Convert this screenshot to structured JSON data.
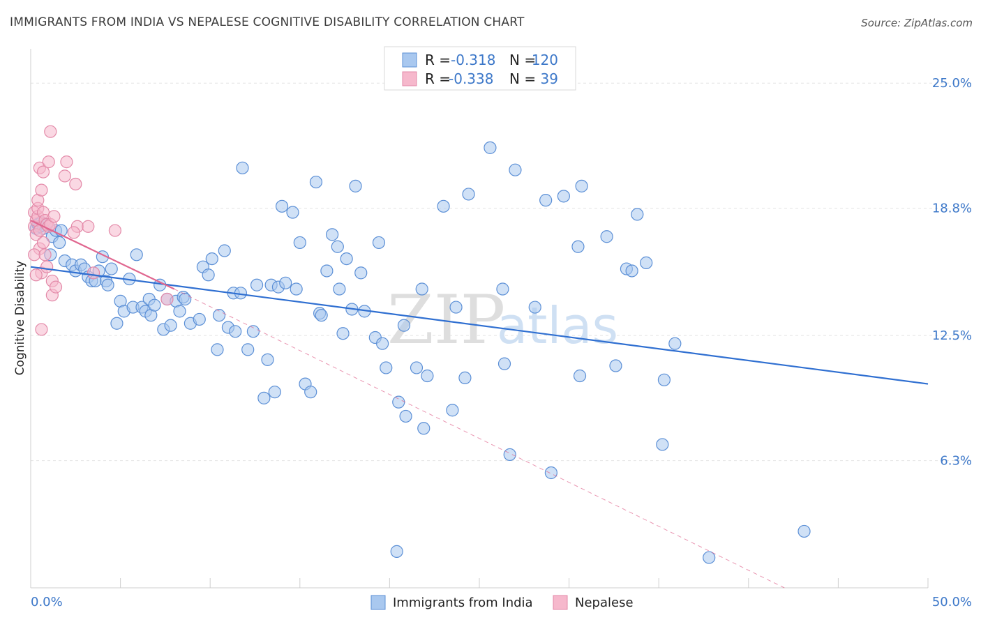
{
  "title": "IMMIGRANTS FROM INDIA VS NEPALESE COGNITIVE DISABILITY CORRELATION CHART",
  "source": "Source: ZipAtlas.com",
  "watermark": {
    "zip": "ZIP",
    "atlas": "atlas"
  },
  "colors": {
    "blue_fill": "#a9c8ef",
    "blue_stroke": "#5b8fd6",
    "blue_line": "#2f6fd1",
    "pink_fill": "#f6b8cc",
    "pink_stroke": "#e389a8",
    "pink_line": "#e0668f",
    "grid": "#e3e3e3",
    "tick_text": "#3d78c9"
  },
  "legend": {
    "rows": [
      {
        "r_label": "R =",
        "r_value": "-0.318",
        "n_label": "N =",
        "n_value": "120"
      },
      {
        "r_label": "R =",
        "r_value": "-0.338",
        "n_label": "N =",
        "n_value": "39"
      }
    ]
  },
  "bottom_legend": [
    "Immigrants from India",
    "Nepalese"
  ],
  "chart_data": {
    "type": "scatter",
    "title": "IMMIGRANTS FROM INDIA VS NEPALESE COGNITIVE DISABILITY CORRELATION CHART",
    "xlabel": "",
    "ylabel": "Cognitive Disability",
    "xlim": [
      0,
      50
    ],
    "ylim": [
      0,
      26.7
    ],
    "x_tick_labels": [
      "0.0%",
      "50.0%"
    ],
    "y_ticks": [
      6.3,
      12.5,
      18.8,
      25.0
    ],
    "y_tick_labels": [
      "6.3%",
      "12.5%",
      "18.8%",
      "25.0%"
    ],
    "grid": true,
    "legend_placement": "top-center",
    "series": [
      {
        "name": "Immigrants from India",
        "color": "#a9c8ef",
        "trend": {
          "x": [
            0,
            50
          ],
          "y": [
            15.9,
            10.1
          ],
          "style": "solid"
        },
        "points": [
          [
            0.3,
            17.8
          ],
          [
            0.4,
            18.0
          ],
          [
            0.6,
            18.1
          ],
          [
            0.7,
            17.8
          ],
          [
            0.5,
            17.9
          ],
          [
            0.9,
            18.0
          ],
          [
            1.2,
            17.4
          ],
          [
            1.4,
            17.7
          ],
          [
            1.7,
            17.7
          ],
          [
            1.1,
            16.5
          ],
          [
            1.6,
            17.1
          ],
          [
            1.9,
            16.2
          ],
          [
            2.3,
            16.0
          ],
          [
            2.5,
            15.7
          ],
          [
            2.8,
            16.0
          ],
          [
            3.0,
            15.8
          ],
          [
            3.2,
            15.4
          ],
          [
            3.4,
            15.2
          ],
          [
            3.6,
            15.2
          ],
          [
            3.8,
            15.7
          ],
          [
            4.0,
            16.4
          ],
          [
            4.2,
            15.2
          ],
          [
            4.3,
            15.0
          ],
          [
            4.5,
            15.8
          ],
          [
            4.8,
            13.1
          ],
          [
            5.0,
            14.2
          ],
          [
            5.2,
            13.7
          ],
          [
            5.5,
            15.3
          ],
          [
            5.7,
            13.9
          ],
          [
            5.9,
            16.5
          ],
          [
            6.2,
            13.9
          ],
          [
            6.4,
            13.7
          ],
          [
            6.6,
            14.3
          ],
          [
            6.7,
            13.5
          ],
          [
            6.9,
            14.0
          ],
          [
            7.2,
            15.0
          ],
          [
            7.4,
            12.8
          ],
          [
            7.6,
            14.3
          ],
          [
            7.8,
            13.0
          ],
          [
            8.1,
            14.2
          ],
          [
            8.3,
            13.7
          ],
          [
            8.5,
            14.4
          ],
          [
            8.6,
            14.3
          ],
          [
            8.9,
            13.1
          ],
          [
            9.4,
            13.3
          ],
          [
            9.6,
            15.9
          ],
          [
            9.9,
            15.5
          ],
          [
            10.1,
            16.3
          ],
          [
            10.4,
            11.8
          ],
          [
            10.5,
            13.5
          ],
          [
            10.8,
            16.7
          ],
          [
            11.0,
            12.9
          ],
          [
            11.3,
            14.6
          ],
          [
            11.4,
            12.7
          ],
          [
            11.7,
            14.6
          ],
          [
            11.8,
            20.8
          ],
          [
            12.1,
            11.8
          ],
          [
            12.4,
            12.7
          ],
          [
            12.6,
            15.0
          ],
          [
            13.0,
            9.4
          ],
          [
            13.2,
            11.3
          ],
          [
            13.4,
            15.0
          ],
          [
            13.6,
            9.7
          ],
          [
            13.8,
            14.9
          ],
          [
            14.0,
            18.9
          ],
          [
            14.2,
            15.1
          ],
          [
            14.6,
            18.6
          ],
          [
            14.8,
            14.8
          ],
          [
            15.0,
            17.1
          ],
          [
            15.3,
            10.1
          ],
          [
            15.6,
            9.7
          ],
          [
            15.9,
            20.1
          ],
          [
            16.1,
            13.6
          ],
          [
            16.2,
            13.5
          ],
          [
            16.5,
            15.7
          ],
          [
            16.8,
            17.5
          ],
          [
            17.1,
            16.9
          ],
          [
            17.2,
            14.8
          ],
          [
            17.4,
            12.6
          ],
          [
            17.6,
            16.3
          ],
          [
            17.9,
            13.8
          ],
          [
            18.1,
            19.9
          ],
          [
            18.4,
            15.6
          ],
          [
            18.6,
            13.7
          ],
          [
            19.2,
            12.4
          ],
          [
            19.4,
            17.1
          ],
          [
            19.6,
            12.1
          ],
          [
            19.8,
            10.9
          ],
          [
            20.5,
            9.2
          ],
          [
            20.8,
            13.0
          ],
          [
            20.9,
            8.5
          ],
          [
            20.4,
            1.8
          ],
          [
            21.5,
            10.9
          ],
          [
            22.1,
            10.5
          ],
          [
            21.8,
            14.8
          ],
          [
            21.9,
            7.9
          ],
          [
            23.0,
            18.9
          ],
          [
            23.5,
            8.8
          ],
          [
            24.2,
            10.4
          ],
          [
            23.7,
            13.9
          ],
          [
            24.4,
            19.5
          ],
          [
            25.6,
            21.8
          ],
          [
            26.3,
            14.8
          ],
          [
            26.4,
            11.1
          ],
          [
            26.7,
            6.6
          ],
          [
            27.0,
            20.7
          ],
          [
            28.1,
            13.9
          ],
          [
            28.7,
            19.2
          ],
          [
            29.0,
            5.7
          ],
          [
            29.7,
            19.4
          ],
          [
            30.5,
            16.9
          ],
          [
            30.6,
            10.5
          ],
          [
            30.7,
            19.9
          ],
          [
            32.1,
            17.4
          ],
          [
            32.6,
            11.0
          ],
          [
            33.2,
            15.8
          ],
          [
            33.5,
            15.7
          ],
          [
            33.8,
            18.5
          ],
          [
            34.3,
            16.1
          ],
          [
            35.2,
            7.1
          ],
          [
            35.3,
            10.3
          ],
          [
            35.9,
            12.1
          ],
          [
            37.8,
            1.5
          ],
          [
            43.1,
            2.8
          ]
        ]
      },
      {
        "name": "Nepalese",
        "color": "#f6b8cc",
        "trend": {
          "x": [
            0,
            8.0
          ],
          "y": [
            18.2,
            14.8
          ],
          "style": "solid",
          "extended_x": [
            8.0,
            42.0
          ],
          "extended_y": [
            14.8,
            0.0
          ],
          "extended_style": "dashed"
        },
        "points": [
          [
            0.2,
            18.6
          ],
          [
            0.2,
            17.9
          ],
          [
            0.3,
            18.2
          ],
          [
            0.3,
            17.5
          ],
          [
            0.4,
            18.4
          ],
          [
            0.4,
            18.8
          ],
          [
            0.4,
            19.2
          ],
          [
            0.5,
            17.7
          ],
          [
            0.5,
            16.8
          ],
          [
            0.6,
            15.6
          ],
          [
            0.2,
            16.5
          ],
          [
            0.3,
            15.5
          ],
          [
            0.5,
            20.8
          ],
          [
            0.6,
            19.7
          ],
          [
            0.7,
            20.6
          ],
          [
            0.7,
            18.6
          ],
          [
            0.8,
            18.2
          ],
          [
            0.9,
            18.0
          ],
          [
            0.7,
            17.1
          ],
          [
            0.8,
            16.5
          ],
          [
            0.9,
            15.9
          ],
          [
            1.0,
            17.9
          ],
          [
            1.0,
            21.1
          ],
          [
            1.1,
            18.0
          ],
          [
            1.3,
            18.4
          ],
          [
            1.2,
            15.2
          ],
          [
            1.2,
            14.5
          ],
          [
            1.4,
            14.9
          ],
          [
            1.1,
            22.6
          ],
          [
            1.9,
            20.4
          ],
          [
            2.0,
            21.1
          ],
          [
            2.5,
            20.0
          ],
          [
            2.6,
            17.9
          ],
          [
            2.4,
            17.6
          ],
          [
            3.2,
            17.9
          ],
          [
            3.5,
            15.6
          ],
          [
            4.7,
            17.7
          ],
          [
            7.6,
            14.3
          ],
          [
            0.6,
            12.8
          ]
        ]
      }
    ]
  }
}
